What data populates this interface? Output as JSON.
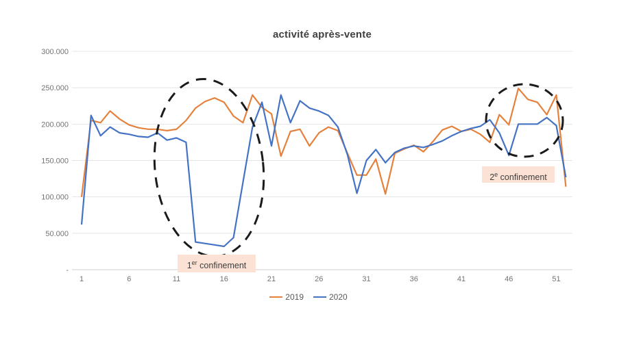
{
  "title_label": "activité après-vente",
  "colors": {
    "series_2019": "#E4813C",
    "series_2020": "#4472C4",
    "grid": "#E4E4E4",
    "axis": "#CFCFCF",
    "tick_text": "#737373",
    "annotation_fill": "#FBE2D5",
    "annotation_text": "#3F3F3F",
    "ellipse_stroke": "#1B1B1B"
  },
  "annotations": [
    {
      "base": "1",
      "sup": "er",
      "rest": " confinement"
    },
    {
      "base": "2",
      "sup": "e",
      "rest": " confinement"
    }
  ],
  "chart_data": {
    "type": "line",
    "title": "activité après-vente",
    "xlabel": "",
    "ylabel": "",
    "grid": "horizontal",
    "legend_position": "bottom",
    "ylim": [
      0,
      300000
    ],
    "x": [
      1,
      2,
      3,
      4,
      5,
      6,
      7,
      8,
      9,
      10,
      11,
      12,
      13,
      14,
      15,
      16,
      17,
      18,
      19,
      20,
      21,
      22,
      23,
      24,
      25,
      26,
      27,
      28,
      29,
      30,
      31,
      32,
      33,
      34,
      35,
      36,
      37,
      38,
      39,
      40,
      41,
      42,
      43,
      44,
      45,
      46,
      47,
      48,
      49,
      50,
      51,
      52
    ],
    "x_ticks": [
      1,
      6,
      11,
      16,
      21,
      26,
      31,
      36,
      41,
      46,
      51
    ],
    "y_ticks": [
      {
        "value": 300000,
        "label": "300.000"
      },
      {
        "value": 250000,
        "label": "250.000"
      },
      {
        "value": 200000,
        "label": "200.000"
      },
      {
        "value": 150000,
        "label": "150.000"
      },
      {
        "value": 100000,
        "label": "100.000"
      },
      {
        "value": 50000,
        "label": "50.000"
      },
      {
        "value": 0,
        "label": "-"
      }
    ],
    "series": [
      {
        "name": "2019",
        "color": "#E4813C",
        "values": [
          100000,
          205000,
          202000,
          218000,
          207000,
          199000,
          195000,
          193000,
          193000,
          191000,
          193000,
          205000,
          222000,
          231000,
          236000,
          230000,
          211000,
          202000,
          240000,
          223000,
          214000,
          156000,
          190000,
          193000,
          170000,
          188000,
          196000,
          191000,
          160000,
          130000,
          130000,
          152000,
          104000,
          160000,
          166000,
          171000,
          162000,
          176000,
          192000,
          197000,
          190000,
          193000,
          186000,
          175000,
          213000,
          199000,
          249000,
          234000,
          230000,
          213000,
          240000,
          114000
        ]
      },
      {
        "name": "2020",
        "color": "#4472C4",
        "values": [
          62000,
          212000,
          184000,
          196000,
          188000,
          186000,
          183000,
          182000,
          188000,
          178000,
          181000,
          175000,
          38000,
          36000,
          34000,
          32000,
          44000,
          120000,
          196000,
          230000,
          170000,
          240000,
          202000,
          232000,
          222000,
          218000,
          212000,
          196000,
          158000,
          105000,
          150000,
          165000,
          147000,
          161000,
          167000,
          170000,
          168000,
          172000,
          177000,
          184000,
          190000,
          194000,
          197000,
          206000,
          188000,
          157000,
          200000,
          200000,
          200000,
          209000,
          198000,
          127000
        ]
      }
    ]
  }
}
